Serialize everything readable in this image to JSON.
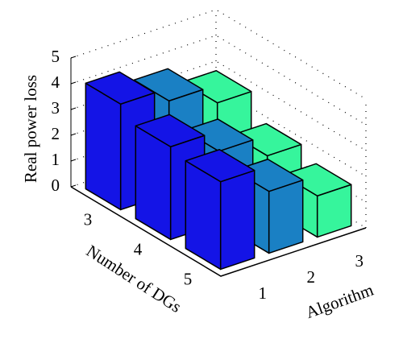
{
  "chart_data": {
    "type": "bar3d",
    "xlabel": "Number of DGs",
    "ylabel": "Algorithm",
    "zlabel": "Real power loss",
    "categories": [
      "3",
      "4",
      "5"
    ],
    "series": [
      {
        "name": "1",
        "color": "#1414e6",
        "values": [
          4.1,
          3.6,
          3.4
        ]
      },
      {
        "name": "2",
        "color": "#1a80c4",
        "values": [
          3.6,
          2.8,
          2.4
        ]
      },
      {
        "name": "3",
        "color": "#36f59c",
        "values": [
          2.9,
          2.0,
          1.6
        ]
      }
    ],
    "zlim": [
      0,
      5
    ],
    "zticks": [
      0,
      1,
      2,
      3,
      4,
      5
    ],
    "grid": true
  }
}
